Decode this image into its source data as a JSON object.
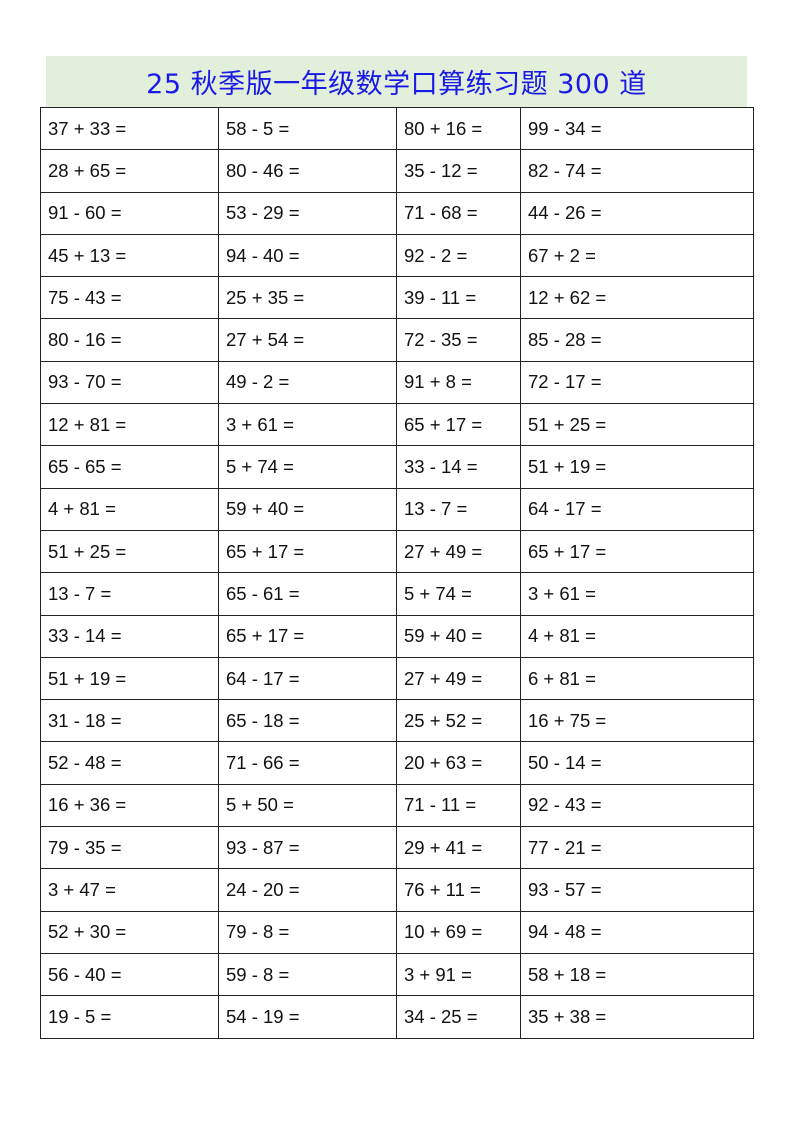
{
  "title": "25 秋季版一年级数学口算练习题 300 道",
  "colors": {
    "title_text": "#1a1ae6",
    "title_background": "#e2efda"
  },
  "problems": [
    [
      "37 + 33 =",
      "58 - 5 =",
      "80 + 16 =",
      "99 - 34 ="
    ],
    [
      "28 + 65 =",
      "80 - 46 =",
      "35 - 12 =",
      "82 - 74 ="
    ],
    [
      "91 - 60 =",
      "53 - 29 =",
      "71 - 68 =",
      "44 - 26 ="
    ],
    [
      "45 + 13 =",
      "94 - 40 =",
      "92 - 2 =",
      "67 + 2 ="
    ],
    [
      "75 - 43 =",
      "25 + 35 =",
      "39 - 11 =",
      "12 + 62 ="
    ],
    [
      "80 - 16 =",
      "27 + 54 =",
      "72 - 35 =",
      "85 - 28 ="
    ],
    [
      "93 - 70 =",
      "49 - 2 =",
      "91 + 8 =",
      "72 - 17 ="
    ],
    [
      "12 + 81 =",
      "3 + 61 =",
      "65 + 17 =",
      "51 + 25 ="
    ],
    [
      "65 - 65 =",
      "5 + 74 =",
      "33 - 14 =",
      "51 + 19 ="
    ],
    [
      "4 + 81 =",
      "59 + 40 =",
      "13 - 7 =",
      "64 - 17 ="
    ],
    [
      "51 + 25 =",
      "65 + 17 =",
      "27 + 49 =",
      "65 + 17 ="
    ],
    [
      "13 - 7 =",
      "65 - 61 =",
      "5 + 74 =",
      "3 + 61 ="
    ],
    [
      "33 - 14 =",
      "65 + 17 =",
      "59 + 40 =",
      "4 + 81 ="
    ],
    [
      "51 + 19 =",
      "64 - 17 =",
      "27 + 49 =",
      "6 + 81 ="
    ],
    [
      "31 - 18 =",
      "65 - 18 =",
      "25 + 52 =",
      "16 + 75 ="
    ],
    [
      "52 - 48 =",
      "71 - 66 =",
      "20 + 63 =",
      "50 - 14 ="
    ],
    [
      "16 + 36 =",
      "5 + 50 =",
      "71 - 11 =",
      "92 - 43 ="
    ],
    [
      "79 - 35 =",
      "93 - 87 =",
      "29 + 41 =",
      "77 - 21 ="
    ],
    [
      "3 + 47 =",
      "24 - 20 =",
      "76 + 11 =",
      "93 - 57 ="
    ],
    [
      "52 + 30 =",
      "79 - 8 =",
      "10 + 69 =",
      "94 - 48 ="
    ],
    [
      "56 - 40 =",
      "59 - 8 =",
      "3 + 91 =",
      "58 + 18 ="
    ],
    [
      "19 - 5 =",
      "54 - 19 =",
      "34 - 25 =",
      "35 + 38 ="
    ]
  ]
}
